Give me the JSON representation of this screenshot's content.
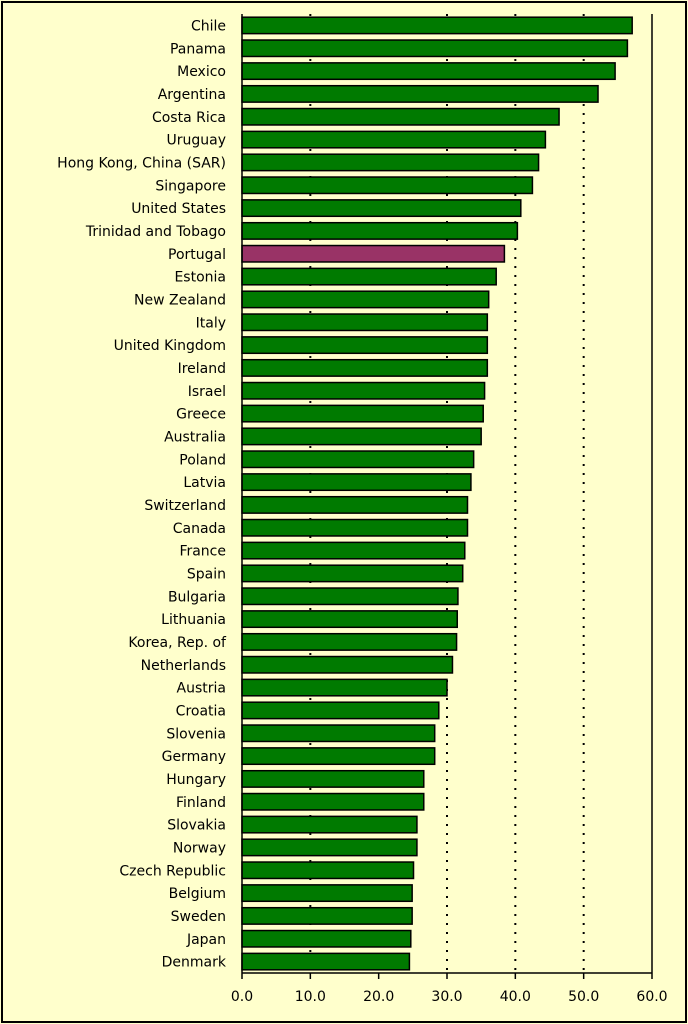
{
  "chart_data": {
    "type": "bar",
    "orientation": "horizontal",
    "title": "",
    "xlabel": "",
    "ylabel": "",
    "xlim": [
      0,
      60
    ],
    "xticks": [
      "0.0",
      "10.0",
      "20.0",
      "30.0",
      "40.0",
      "50.0",
      "60.0"
    ],
    "grid": "vertical dotted at 10, 30, 40, 50",
    "colors": {
      "default": "#007a00",
      "highlight": "#993366",
      "background": "#ffffcc"
    },
    "highlight": "Portugal",
    "categories": [
      "Chile",
      "Panama",
      "Mexico",
      "Argentina",
      "Costa Rica",
      "Uruguay",
      "Hong Kong, China (SAR)",
      "Singapore",
      "United States",
      "Trinidad and Tobago",
      "Portugal",
      "Estonia",
      "New Zealand",
      "Italy",
      "United Kingdom",
      "Ireland",
      "Israel",
      "Greece",
      "Australia",
      "Poland",
      "Latvia",
      "Switzerland",
      "Canada",
      "France",
      "Spain",
      "Bulgaria",
      "Lithuania",
      "Korea, Rep. of",
      "Netherlands",
      "Austria",
      "Croatia",
      "Slovenia",
      "Germany",
      "Hungary",
      "Finland",
      "Slovakia",
      "Norway",
      "Czech Republic",
      "Belgium",
      "Sweden",
      "Japan",
      "Denmark"
    ],
    "values": [
      57.1,
      56.4,
      54.6,
      52.1,
      46.4,
      44.4,
      43.4,
      42.5,
      40.8,
      40.3,
      38.4,
      37.2,
      36.1,
      35.9,
      35.9,
      35.9,
      35.5,
      35.3,
      35.0,
      33.9,
      33.5,
      33.0,
      33.0,
      32.6,
      32.3,
      31.6,
      31.5,
      31.4,
      30.8,
      30.0,
      28.8,
      28.2,
      28.2,
      26.6,
      26.6,
      25.6,
      25.6,
      25.1,
      24.9,
      24.9,
      24.7,
      24.5
    ]
  }
}
